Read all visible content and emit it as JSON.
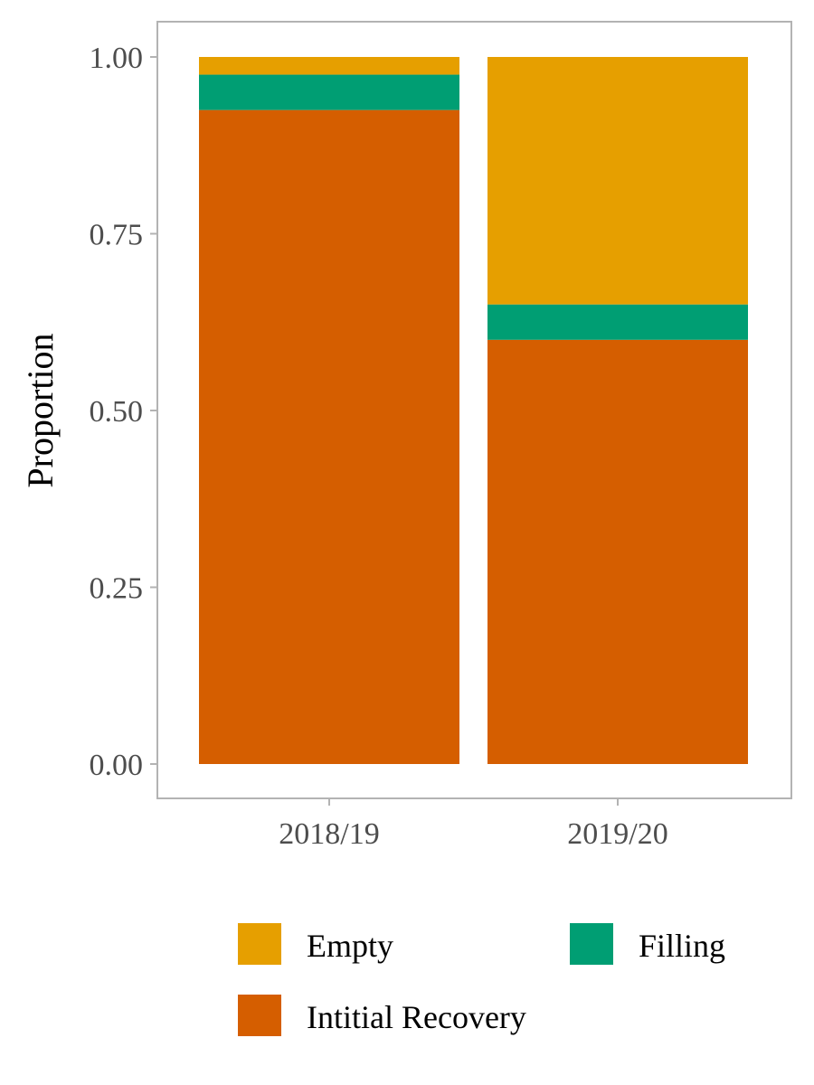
{
  "chart_data": {
    "type": "bar",
    "stacked": true,
    "title": "",
    "xlabel": "",
    "ylabel": "Proportion",
    "ylim": [
      0,
      1
    ],
    "yticks": [
      "0.00",
      "0.25",
      "0.50",
      "0.75",
      "1.00"
    ],
    "categories": [
      "2018/19",
      "2019/20"
    ],
    "series": [
      {
        "name": "Intitial Recovery",
        "color": "#D55E00",
        "values": [
          0.925,
          0.6
        ]
      },
      {
        "name": "Filling",
        "color": "#009E73",
        "values": [
          0.05,
          0.05
        ]
      },
      {
        "name": "Empty",
        "color": "#E69F00",
        "values": [
          0.025,
          0.35
        ]
      }
    ],
    "legend": {
      "position": "bottom",
      "order": [
        "Empty",
        "Filling",
        "Intitial Recovery"
      ]
    },
    "grid": false,
    "panel_border_color": "#b3b3b3"
  }
}
